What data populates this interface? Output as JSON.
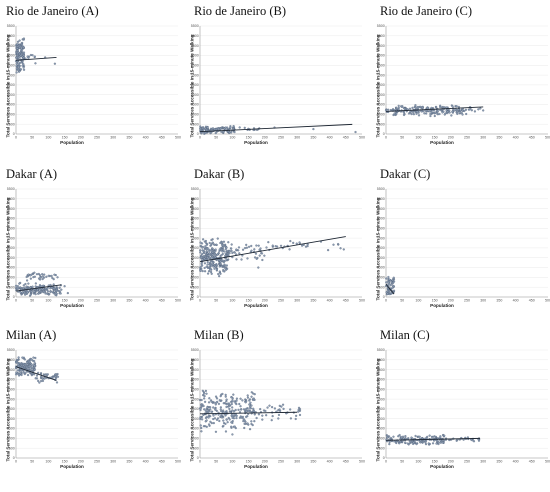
{
  "chart_data": [
    {
      "type": "scatter",
      "title": "Rio de Janeiro (A)",
      "xlabel": "Population",
      "ylabel": "Total Services Accessible in 15-minute Walking",
      "xlim": [
        0,
        500
      ],
      "ylim": [
        0,
        5500
      ],
      "x_ticks": [
        0,
        50,
        100,
        150,
        200,
        250,
        300,
        350,
        400,
        450,
        500
      ],
      "y_ticks": [
        0,
        500,
        1000,
        1500,
        2000,
        2500,
        3000,
        3500,
        4000,
        4500,
        5000,
        5500
      ],
      "clusters": [
        {
          "x": [
            0,
            25
          ],
          "y": [
            3050,
            4950
          ],
          "count": 130
        },
        {
          "x": [
            25,
            60
          ],
          "y": [
            3700,
            4150
          ],
          "count": 8
        }
      ],
      "extra_points": [
        [
          60,
          3600
        ],
        [
          120,
          3580
        ],
        [
          90,
          3900
        ]
      ],
      "trend": {
        "x": [
          0,
          125
        ],
        "y": [
          3750,
          3900
        ]
      }
    },
    {
      "type": "scatter",
      "title": "Rio de Janeiro (B)",
      "xlabel": "Population",
      "ylabel": "Total Services Accessible in 15-minute Walking",
      "xlim": [
        0,
        500
      ],
      "ylim": [
        0,
        5500
      ],
      "x_ticks": [
        0,
        50,
        100,
        150,
        200,
        250,
        300,
        350,
        400,
        450,
        500
      ],
      "y_ticks": [
        0,
        500,
        1000,
        1500,
        2000,
        2500,
        3000,
        3500,
        4000,
        4500,
        5000,
        5500
      ],
      "clusters": [
        {
          "x": [
            0,
            110
          ],
          "y": [
            0,
            420
          ],
          "count": 140
        },
        {
          "x": [
            110,
            190
          ],
          "y": [
            100,
            350
          ],
          "count": 12
        }
      ],
      "extra_points": [
        [
          230,
          330
        ],
        [
          480,
          100
        ],
        [
          350,
          250
        ]
      ],
      "trend": {
        "x": [
          0,
          470
        ],
        "y": [
          120,
          490
        ]
      }
    },
    {
      "type": "scatter",
      "title": "Rio de Janeiro (C)",
      "xlabel": "Population",
      "ylabel": "Total Services Accessible in 15-minute Walking",
      "xlim": [
        0,
        500
      ],
      "ylim": [
        0,
        5500
      ],
      "x_ticks": [
        0,
        50,
        100,
        150,
        200,
        250,
        300,
        350,
        400,
        450,
        500
      ],
      "y_ticks": [
        0,
        500,
        1000,
        1500,
        2000,
        2500,
        3000,
        3500,
        4000,
        4500,
        5000,
        5500
      ],
      "clusters": [
        {
          "x": [
            0,
            250
          ],
          "y": [
            900,
            1500
          ],
          "count": 210
        },
        {
          "x": [
            250,
            300
          ],
          "y": [
            1100,
            1400
          ],
          "count": 8
        }
      ],
      "extra_points": [
        [
          300,
          1200
        ]
      ],
      "trend": {
        "x": [
          0,
          300
        ],
        "y": [
          1150,
          1380
        ]
      }
    },
    {
      "type": "scatter",
      "title": "Dakar (A)",
      "xlabel": "Population",
      "ylabel": "Total Services Accessible in 15-minute Walking",
      "xlim": [
        0,
        500
      ],
      "ylim": [
        0,
        5500
      ],
      "x_ticks": [
        0,
        50,
        100,
        150,
        200,
        250,
        300,
        350,
        400,
        450,
        500
      ],
      "y_ticks": [
        0,
        500,
        1000,
        1500,
        2000,
        2500,
        3000,
        3500,
        4000,
        4500,
        5000,
        5500
      ],
      "clusters": [
        {
          "x": [
            0,
            140
          ],
          "y": [
            0,
            750
          ],
          "count": 190
        },
        {
          "x": [
            20,
            130
          ],
          "y": [
            800,
            1300
          ],
          "count": 35
        }
      ],
      "extra_points": [
        [
          160,
          200
        ],
        [
          150,
          550
        ]
      ],
      "trend": {
        "x": [
          0,
          140
        ],
        "y": [
          300,
          620
        ]
      }
    },
    {
      "type": "scatter",
      "title": "Dakar (B)",
      "xlabel": "Population",
      "ylabel": "Total Services Accessible in 15-minute Walking",
      "xlim": [
        0,
        500
      ],
      "ylim": [
        0,
        5500
      ],
      "x_ticks": [
        0,
        50,
        100,
        150,
        200,
        250,
        300,
        350,
        400,
        450,
        500
      ],
      "y_ticks": [
        0,
        500,
        1000,
        1500,
        2000,
        2500,
        3000,
        3500,
        4000,
        4500,
        5000,
        5500
      ],
      "clusters": [
        {
          "x": [
            0,
            90
          ],
          "y": [
            1000,
            3100
          ],
          "count": 280
        },
        {
          "x": [
            90,
            200
          ],
          "y": [
            1700,
            2800
          ],
          "count": 45
        },
        {
          "x": [
            200,
            450
          ],
          "y": [
            2300,
            3000
          ],
          "count": 30
        }
      ],
      "extra_points": [
        [
          180,
          1500
        ]
      ],
      "trend": {
        "x": [
          0,
          450
        ],
        "y": [
          1800,
          3080
        ]
      }
    },
    {
      "type": "scatter",
      "title": "Dakar (C)",
      "xlabel": "Population",
      "ylabel": "Total Services Accessible in 15-minute Walking",
      "xlim": [
        0,
        500
      ],
      "ylim": [
        0,
        5500
      ],
      "x_ticks": [
        0,
        50,
        100,
        150,
        200,
        250,
        300,
        350,
        400,
        450,
        500
      ],
      "y_ticks": [
        0,
        500,
        1000,
        1500,
        2000,
        2500,
        3000,
        3500,
        4000,
        4500,
        5000,
        5500
      ],
      "clusters": [
        {
          "x": [
            0,
            25
          ],
          "y": [
            0,
            1100
          ],
          "count": 70
        }
      ],
      "extra_points": [],
      "trend": {
        "x": [
          0,
          25
        ],
        "y": [
          650,
          150
        ]
      }
    },
    {
      "type": "scatter",
      "title": "Milan (A)",
      "xlabel": "Population",
      "ylabel": "Total Services Accessible in 15-minute Walking",
      "xlim": [
        0,
        500
      ],
      "ylim": [
        0,
        5500
      ],
      "x_ticks": [
        0,
        50,
        100,
        150,
        200,
        250,
        300,
        350,
        400,
        450,
        500
      ],
      "y_ticks": [
        0,
        500,
        1000,
        1500,
        2000,
        2500,
        3000,
        3500,
        4000,
        4500,
        5000,
        5500
      ],
      "clusters": [
        {
          "x": [
            0,
            60
          ],
          "y": [
            4100,
            5200
          ],
          "count": 160
        },
        {
          "x": [
            60,
            130
          ],
          "y": [
            3800,
            4400
          ],
          "count": 40
        }
      ],
      "extra_points": [],
      "trend": {
        "x": [
          0,
          125
        ],
        "y": [
          4650,
          3950
        ]
      }
    },
    {
      "type": "scatter",
      "title": "Milan (B)",
      "xlabel": "Population",
      "ylabel": "Total Services Accessible in 15-minute Walking",
      "xlim": [
        0,
        500
      ],
      "ylim": [
        0,
        5500
      ],
      "x_ticks": [
        0,
        50,
        100,
        150,
        200,
        250,
        300,
        350,
        400,
        450,
        500
      ],
      "y_ticks": [
        0,
        500,
        1000,
        1500,
        2000,
        2500,
        3000,
        3500,
        4000,
        4500,
        5000,
        5500
      ],
      "clusters": [
        {
          "x": [
            0,
            170
          ],
          "y": [
            1300,
            3500
          ],
          "count": 260
        },
        {
          "x": [
            170,
            310
          ],
          "y": [
            1800,
            2900
          ],
          "count": 40
        }
      ],
      "extra_points": [
        [
          100,
          1200
        ]
      ],
      "trend": {
        "x": [
          0,
          300
        ],
        "y": [
          2250,
          2330
        ]
      }
    },
    {
      "type": "scatter",
      "title": "Milan (C)",
      "xlabel": "Population",
      "ylabel": "Total Services Accessible in 15-minute Walking",
      "xlim": [
        0,
        500
      ],
      "ylim": [
        0,
        5500
      ],
      "x_ticks": [
        0,
        50,
        100,
        150,
        200,
        250,
        300,
        350,
        400,
        450,
        500
      ],
      "y_ticks": [
        0,
        500,
        1000,
        1500,
        2000,
        2500,
        3000,
        3500,
        4000,
        4500,
        5000,
        5500
      ],
      "clusters": [
        {
          "x": [
            0,
            180
          ],
          "y": [
            650,
            1200
          ],
          "count": 170
        },
        {
          "x": [
            180,
            290
          ],
          "y": [
            800,
            1100
          ],
          "count": 25
        }
      ],
      "extra_points": [],
      "trend": {
        "x": [
          0,
          290
        ],
        "y": [
          900,
          1000
        ]
      }
    }
  ],
  "colors": {
    "marker_fill": "#8d9db3",
    "marker_stroke": "#3f4f66",
    "trend": "#1e2733",
    "grid": "#e3e3e3",
    "axis": "#9a9a9a"
  }
}
